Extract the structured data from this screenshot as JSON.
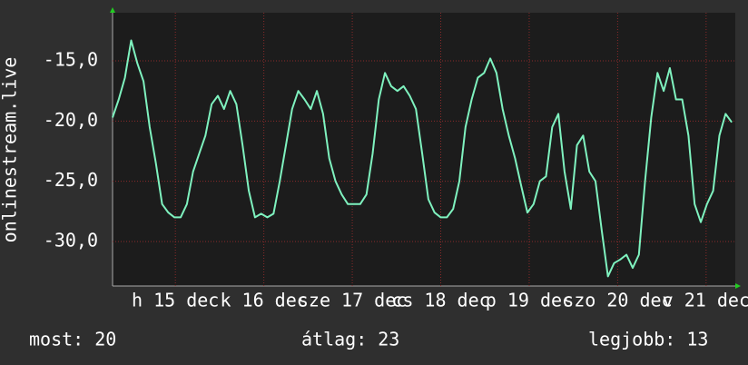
{
  "chart_data": {
    "type": "line",
    "y_label": "onlinestream.live",
    "x": [
      14.29,
      14.36,
      14.43,
      14.5,
      14.57,
      14.64,
      14.71,
      14.78,
      14.85,
      14.92,
      14.99,
      15.06,
      15.13,
      15.2,
      15.27,
      15.34,
      15.41,
      15.48,
      15.55,
      15.62,
      15.69,
      15.76,
      15.83,
      15.9,
      15.97,
      16.04,
      16.11,
      16.18,
      16.25,
      16.32,
      16.39,
      16.46,
      16.53,
      16.6,
      16.67,
      16.74,
      16.81,
      16.88,
      16.95,
      17.02,
      17.09,
      17.16,
      17.23,
      17.3,
      17.37,
      17.44,
      17.51,
      17.58,
      17.65,
      17.72,
      17.79,
      17.86,
      17.93,
      18,
      18.07,
      18.14,
      18.21,
      18.28,
      18.35,
      18.42,
      18.49,
      18.56,
      18.63,
      18.7,
      18.77,
      18.84,
      18.91,
      18.98,
      19.05,
      19.12,
      19.19,
      19.26,
      19.33,
      19.4,
      19.47,
      19.54,
      19.61,
      19.68,
      19.75,
      19.82,
      19.89,
      19.96,
      20.03,
      20.1,
      20.17,
      20.24,
      20.31,
      20.38,
      20.45,
      20.52,
      20.59,
      20.66,
      20.73,
      20.8,
      20.87,
      20.94,
      21.01,
      21.08,
      21.15,
      21.22,
      21.29
    ],
    "series": [
      {
        "color": "#7ff2bf",
        "values": [
          -19.7,
          -18.2,
          -16.4,
          -13.3,
          -15.2,
          -16.7,
          -20.5,
          -23.5,
          -26.9,
          -27.6,
          -28.0,
          -28.0,
          -26.9,
          -24.2,
          -22.7,
          -21.2,
          -18.6,
          -17.9,
          -19.0,
          -17.5,
          -18.6,
          -22.0,
          -25.8,
          -28.0,
          -27.7,
          -28.0,
          -27.7,
          -25.0,
          -22.0,
          -19.0,
          -17.5,
          -18.2,
          -19.0,
          -17.5,
          -19.4,
          -23.1,
          -25.0,
          -26.1,
          -26.9,
          -26.9,
          -26.9,
          -26.1,
          -22.7,
          -18.2,
          -16.0,
          -17.1,
          -17.5,
          -17.1,
          -17.9,
          -19.0,
          -22.7,
          -26.5,
          -27.6,
          -28.0,
          -28.0,
          -27.3,
          -25.0,
          -20.5,
          -18.2,
          -16.4,
          -16.0,
          -14.8,
          -16.0,
          -19.0,
          -21.2,
          -23.1,
          -25.4,
          -27.6,
          -26.9,
          -25.0,
          -24.6,
          -20.5,
          -19.4,
          -24.2,
          -27.3,
          -22.0,
          -21.2,
          -24.2,
          -25.0,
          -29.1,
          -32.9,
          -31.8,
          -31.5,
          -31.1,
          -32.2,
          -31.1,
          -25.0,
          -19.7,
          -16.0,
          -17.5,
          -15.6,
          -18.2,
          -18.2,
          -21.2,
          -26.9,
          -28.4,
          -26.9,
          -25.8,
          -21.2,
          -19.4,
          -20.1
        ]
      }
    ],
    "xlim": [
      14.29,
      21.33
    ],
    "xticks": [
      {
        "value": 15,
        "label": "h 15 dec"
      },
      {
        "value": 16,
        "label": "k 16 dec"
      },
      {
        "value": 17,
        "label": "sze 17 dec"
      },
      {
        "value": 18,
        "label": "cs 18 dec"
      },
      {
        "value": 19,
        "label": "p 19 dec"
      },
      {
        "value": 20,
        "label": "szo 20 dec"
      },
      {
        "value": 21,
        "label": "v 21 dec"
      }
    ],
    "ylim": [
      -33.7,
      -11
    ],
    "yticks": [
      {
        "value": -15,
        "label": "-15,0"
      },
      {
        "value": -20,
        "label": "-20,0"
      },
      {
        "value": -25,
        "label": "-25,0"
      },
      {
        "value": -30,
        "label": "-30,0"
      }
    ],
    "grid": true,
    "stats": [
      {
        "label": "most:",
        "value": 20
      },
      {
        "label": "átlag:",
        "value": 23
      },
      {
        "label": "legjobb:",
        "value": 13
      }
    ]
  }
}
